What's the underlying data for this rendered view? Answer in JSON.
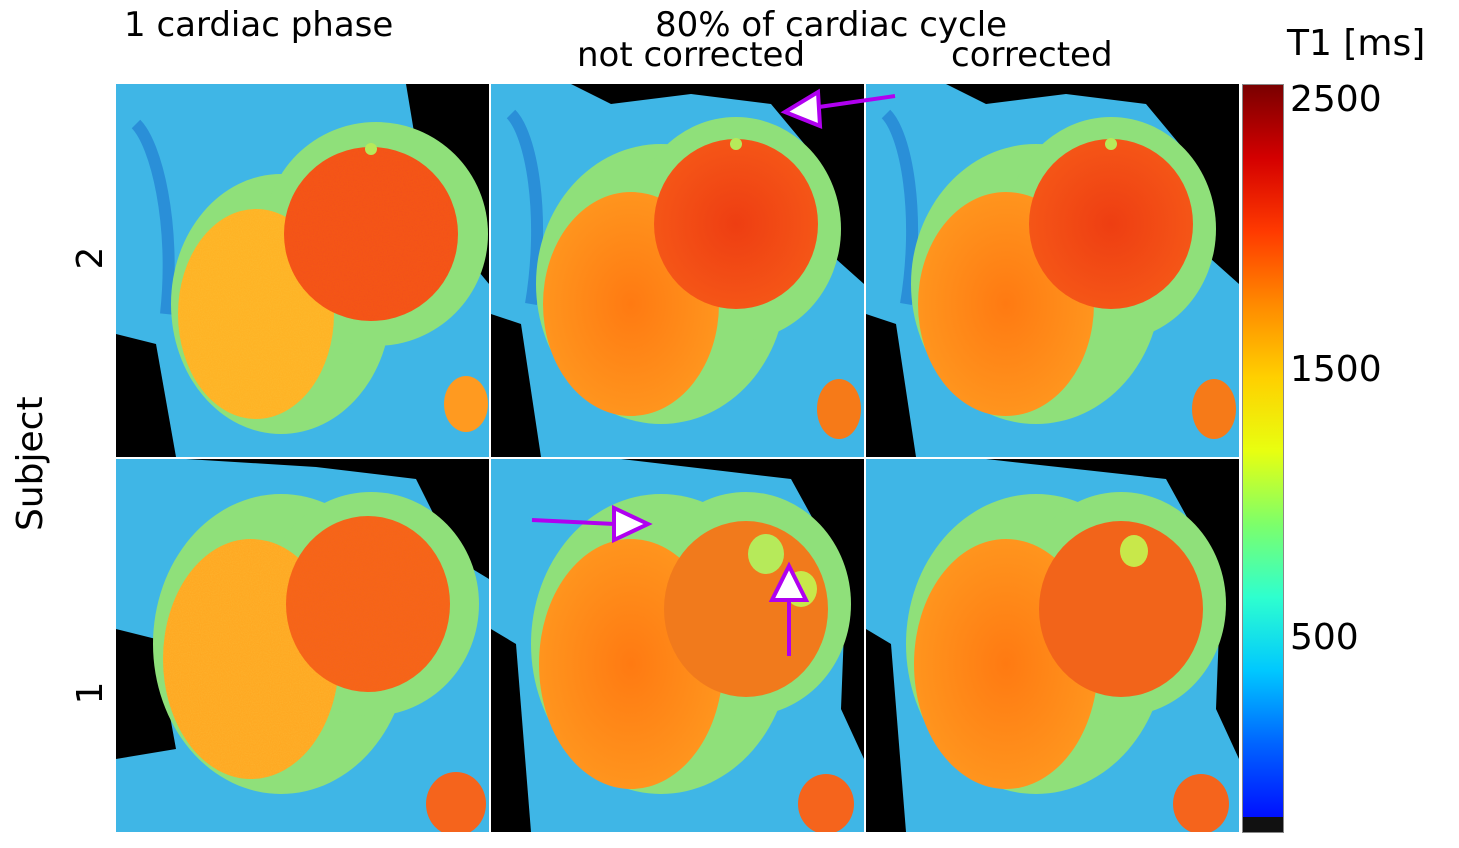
{
  "headers": {
    "col1": "1 cardiac phase",
    "group": "80% of cardiac cycle",
    "col2": "not corrected",
    "col3": "corrected"
  },
  "row_labels": {
    "axis": "Subject",
    "top": "2",
    "bottom": "1"
  },
  "colorbar": {
    "title": "T1 [ms]",
    "ticks": [
      "2500",
      "1500",
      "500"
    ],
    "colors": [
      "#7a0000",
      "#d40000",
      "#ff3a00",
      "#ff8a00",
      "#ffd000",
      "#e8ff10",
      "#7dff6a",
      "#2effcf",
      "#00c8ff",
      "#0064ff",
      "#0010ff"
    ]
  },
  "colors": {
    "arrow": "#b000f0",
    "background": "#000000",
    "blood_pool": "#e85a1a",
    "myocardium": "#9be05a",
    "tissue": "#3bb8e8"
  }
}
